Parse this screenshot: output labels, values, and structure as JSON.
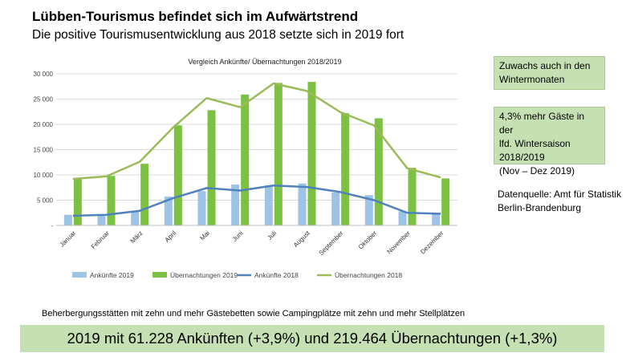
{
  "header": {
    "title": "Lübben-Tourismus befindet sich im Aufwärtstrend",
    "subtitle": "Die positive Tourismusentwicklung aus 2018 setzte sich in 2019 fort"
  },
  "notes": {
    "box1": "Zuwachs auch in den Wintermonaten",
    "box2_lines": [
      "4,3% mehr Gäste in der",
      "lfd. Wintersaison",
      "2018/2019",
      "(Nov – Dez 2019)"
    ],
    "source": "Datenquelle: Amt für Statistik Berlin-Brandenburg"
  },
  "footnote": "Beherbergungsstätten mit zehn und mehr Gästebetten sowie Campingplätze mit zehn und mehr Stellplätzen",
  "banner": "2019 mit 61.228 Ankünften (+3,9%) und 219.464 Übernachtungen (+1,3%)",
  "colors": {
    "ank2019": "#9dc3e6",
    "uebn2019": "#7dc142",
    "ank2018": "#4f81bd",
    "uebn2018": "#9bbb59",
    "grid": "#d9d9d9",
    "highlight": "#c5e0b3"
  },
  "chart_data": {
    "type": "bar",
    "title": "Vergleich Ankünfte/ Übernachtungen 2018/2019",
    "categories": [
      "Januar",
      "Februar",
      "März",
      "April",
      "Mai",
      "Juni",
      "Juli",
      "August",
      "September",
      "Oktober",
      "November",
      "Dezember"
    ],
    "yticks": [
      "-",
      "5 000",
      "10 000",
      "15 000",
      "20 000",
      "25 000",
      "30 000"
    ],
    "ylim": [
      0,
      30000
    ],
    "grid": true,
    "legend": "bottom",
    "series": [
      {
        "name": "Ankünfte 2019",
        "kind": "bar",
        "color": "#9dc3e6",
        "values": [
          2100,
          2000,
          2800,
          5700,
          6800,
          8100,
          7900,
          8300,
          6500,
          6000,
          2800,
          2300
        ]
      },
      {
        "name": "Übernachtungen 2019",
        "kind": "bar",
        "color": "#7dc142",
        "values": [
          9300,
          9800,
          12200,
          19800,
          22800,
          25900,
          28200,
          28400,
          22200,
          21200,
          11400,
          9300
        ]
      },
      {
        "name": "Ankünfte 2018",
        "kind": "line",
        "color": "#4f81bd",
        "values": [
          1900,
          2100,
          2900,
          5400,
          7400,
          6900,
          7900,
          7600,
          6600,
          5000,
          2500,
          2300
        ]
      },
      {
        "name": "Übernachtungen 2018",
        "kind": "line",
        "color": "#9bbb59",
        "values": [
          9200,
          9700,
          12600,
          19400,
          25200,
          23400,
          28100,
          26600,
          22400,
          19800,
          11300,
          9500
        ]
      }
    ]
  }
}
